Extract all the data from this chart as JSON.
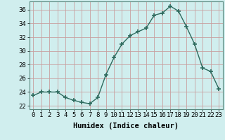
{
  "x": [
    0,
    1,
    2,
    3,
    4,
    5,
    6,
    7,
    8,
    9,
    10,
    11,
    12,
    13,
    14,
    15,
    16,
    17,
    18,
    19,
    20,
    21,
    22,
    23
  ],
  "y": [
    23.5,
    24.0,
    24.0,
    24.0,
    23.2,
    22.8,
    22.5,
    22.3,
    23.2,
    26.5,
    29.0,
    31.0,
    32.2,
    32.8,
    33.3,
    35.2,
    35.5,
    36.5,
    35.8,
    33.5,
    31.0,
    27.5,
    27.0,
    24.5
  ],
  "line_color": "#2e6b5e",
  "marker": "+",
  "marker_size": 4,
  "marker_edge_width": 1.2,
  "bg_color": "#d0eeee",
  "grid_color": "#c8a0a0",
  "xlabel": "Humidex (Indice chaleur)",
  "ylabel_ticks": [
    22,
    24,
    26,
    28,
    30,
    32,
    34,
    36
  ],
  "xtick_labels": [
    "0",
    "1",
    "2",
    "3",
    "4",
    "5",
    "6",
    "7",
    "8",
    "9",
    "10",
    "11",
    "12",
    "13",
    "14",
    "15",
    "16",
    "17",
    "18",
    "19",
    "20",
    "21",
    "22",
    "23"
  ],
  "ylim": [
    21.5,
    37.2
  ],
  "xlim": [
    -0.5,
    23.5
  ],
  "xlabel_fontsize": 7.5,
  "tick_fontsize": 6.5,
  "line_width": 1.0
}
